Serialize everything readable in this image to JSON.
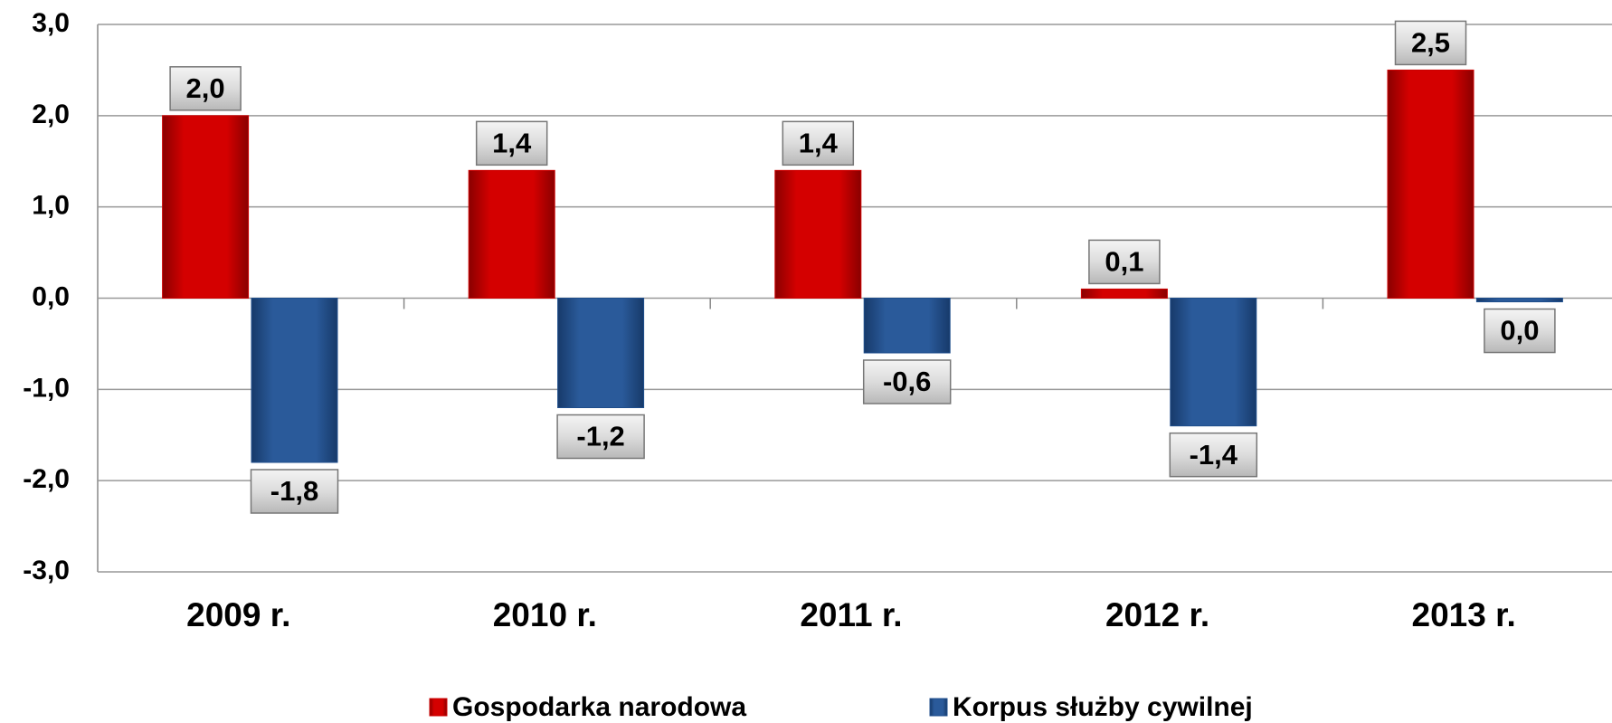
{
  "chart_data": {
    "type": "bar",
    "categories": [
      "2009 r.",
      "2010 r.",
      "2011 r.",
      "2012 r.",
      "2013 r."
    ],
    "series": [
      {
        "name": "Gospodarka narodowa",
        "color": "#cc0000",
        "values": [
          2.0,
          1.4,
          1.4,
          0.1,
          2.5
        ],
        "value_labels": [
          "2,0",
          "1,4",
          "1,4",
          "0,1",
          "2,5"
        ]
      },
      {
        "name": "Korpus służby cywilnej",
        "color": "#1f4e8c",
        "values": [
          -1.8,
          -1.2,
          -0.6,
          -1.4,
          -0.04
        ],
        "value_labels": [
          "-1,8",
          "-1,2",
          "-0,6",
          "-1,4",
          "0,0"
        ]
      }
    ],
    "ylim": [
      -3,
      3
    ],
    "yticks": [
      {
        "value": -3,
        "label": "-3,0"
      },
      {
        "value": -2,
        "label": "-2,0"
      },
      {
        "value": -1,
        "label": "-1,0"
      },
      {
        "value": 0,
        "label": "0,0"
      },
      {
        "value": 1,
        "label": "1,0"
      },
      {
        "value": 2,
        "label": "2,0"
      },
      {
        "value": 3,
        "label": "3,0"
      }
    ],
    "grid": true,
    "legend": "bottom"
  }
}
